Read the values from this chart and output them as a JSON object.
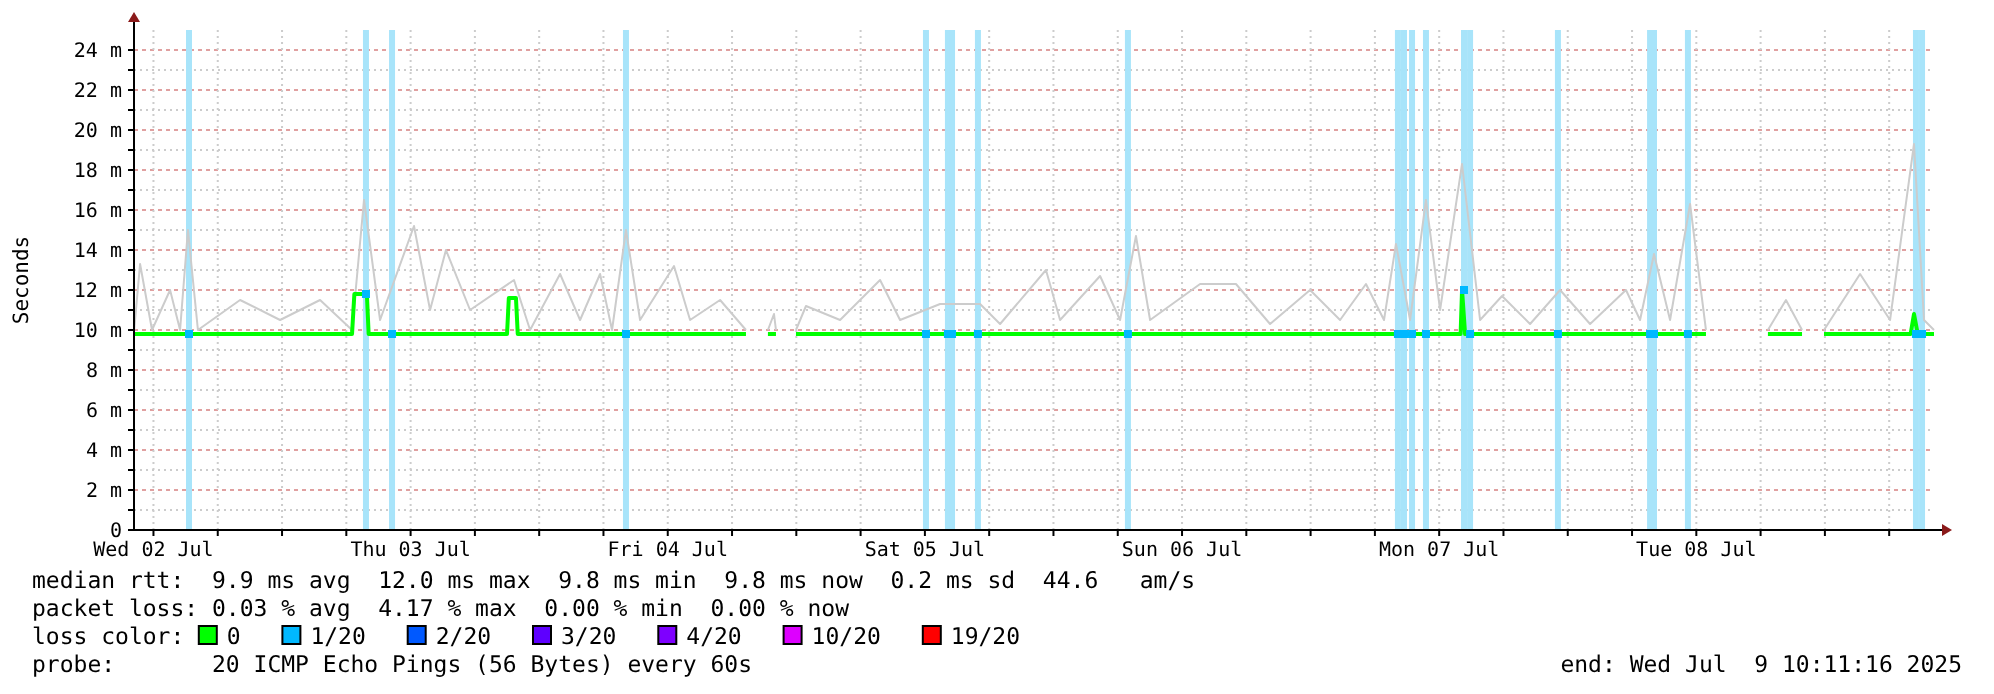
{
  "chart_data": {
    "type": "line",
    "ylabel": "Seconds",
    "ylim": [
      0,
      25
    ],
    "yticks": [
      0,
      {
        "value": 1,
        "label": null
      },
      {
        "value": 2,
        "label": "2 m"
      },
      {
        "value": 3,
        "label": null
      },
      {
        "value": 4,
        "label": "4 m"
      },
      {
        "value": 5,
        "label": null
      },
      {
        "value": 6,
        "label": "6 m"
      },
      {
        "value": 7,
        "label": null
      },
      {
        "value": 8,
        "label": "8 m"
      },
      {
        "value": 9,
        "label": null
      },
      {
        "value": 10,
        "label": "10 m"
      },
      {
        "value": 11,
        "label": null
      },
      {
        "value": 12,
        "label": "12 m"
      },
      {
        "value": 13,
        "label": null
      },
      {
        "value": 14,
        "label": "14 m"
      },
      {
        "value": 15,
        "label": null
      },
      {
        "value": 16,
        "label": "16 m"
      },
      {
        "value": 17,
        "label": null
      },
      {
        "value": 18,
        "label": "18 m"
      },
      {
        "value": 19,
        "label": null
      },
      {
        "value": 20,
        "label": "20 m"
      },
      {
        "value": 21,
        "label": null
      },
      {
        "value": 22,
        "label": "22 m"
      },
      {
        "value": 23,
        "label": null
      },
      {
        "value": 24,
        "label": "24 m"
      }
    ],
    "xlim": [
      "2025-07-02T10:11",
      "2025-07-09T10:11"
    ],
    "xticks": [
      {
        "value": "2025-07-02T12:00",
        "label": "Wed 02 Jul"
      },
      {
        "value": "2025-07-02T18:00",
        "label": null
      },
      {
        "value": "2025-07-03T00:00",
        "label": null
      },
      {
        "value": "2025-07-03T06:00",
        "label": null
      },
      {
        "value": "2025-07-03T12:00",
        "label": "Thu 03 Jul"
      },
      {
        "value": "2025-07-03T18:00",
        "label": null
      },
      {
        "value": "2025-07-04T00:00",
        "label": null
      },
      {
        "value": "2025-07-04T06:00",
        "label": null
      },
      {
        "value": "2025-07-04T12:00",
        "label": "Fri 04 Jul"
      },
      {
        "value": "2025-07-04T18:00",
        "label": null
      },
      {
        "value": "2025-07-05T00:00",
        "label": null
      },
      {
        "value": "2025-07-05T06:00",
        "label": null
      },
      {
        "value": "2025-07-05T12:00",
        "label": "Sat 05 Jul"
      },
      {
        "value": "2025-07-05T18:00",
        "label": null
      },
      {
        "value": "2025-07-06T00:00",
        "label": null
      },
      {
        "value": "2025-07-06T06:00",
        "label": null
      },
      {
        "value": "2025-07-06T12:00",
        "label": "Sun 06 Jul"
      },
      {
        "value": "2025-07-06T18:00",
        "label": null
      },
      {
        "value": "2025-07-07T00:00",
        "label": null
      },
      {
        "value": "2025-07-07T06:00",
        "label": null
      },
      {
        "value": "2025-07-07T12:00",
        "label": "Mon 07 Jul"
      },
      {
        "value": "2025-07-07T18:00",
        "label": null
      },
      {
        "value": "2025-07-08T00:00",
        "label": null
      },
      {
        "value": "2025-07-08T06:00",
        "label": null
      },
      {
        "value": "2025-07-08T12:00",
        "label": "Tue 08 Jul"
      },
      {
        "value": "2025-07-08T18:00",
        "label": null
      },
      {
        "value": "2025-07-09T00:00",
        "label": null
      },
      {
        "value": "2025-07-09T06:00",
        "label": null
      }
    ],
    "grid": true,
    "legend": "bottom",
    "ref_lines": [
      {
        "axis": "x",
        "value": "2025-07-02T15:19",
        "color": "#a8e4fa"
      },
      {
        "axis": "x",
        "value": "2025-07-03T07:50",
        "color": "#a8e4fa"
      },
      {
        "axis": "x",
        "value": "2025-07-03T10:16",
        "color": "#a8e4fa"
      },
      {
        "axis": "x",
        "value": "2025-07-04T08:06",
        "color": "#a8e4fa"
      },
      {
        "axis": "x",
        "value": "2025-07-05T12:06",
        "color": "#a8e4fa"
      },
      {
        "axis": "x",
        "value": "2025-07-05T14:09",
        "color": "#a8e4fa"
      },
      {
        "axis": "x",
        "value": "2025-07-05T14:32",
        "color": "#a8e4fa"
      },
      {
        "axis": "x",
        "value": "2025-07-05T16:57",
        "color": "#a8e4fa"
      },
      {
        "axis": "x",
        "value": "2025-07-06T06:57",
        "color": "#a8e4fa"
      },
      {
        "axis": "x",
        "value": "2025-07-07T08:09",
        "color": "#a8e4fa"
      },
      {
        "axis": "x",
        "value": "2025-07-07T08:43",
        "color": "#a8e4fa"
      },
      {
        "axis": "x",
        "value": "2025-07-07T09:28",
        "color": "#a8e4fa"
      },
      {
        "axis": "x",
        "value": "2025-07-07T10:46",
        "color": "#a8e4fa"
      },
      {
        "axis": "x",
        "value": "2025-07-07T14:19",
        "color": "#a8e4fa"
      },
      {
        "axis": "x",
        "value": "2025-07-07T14:53",
        "color": "#a8e4fa"
      },
      {
        "axis": "x",
        "value": "2025-07-07T23:05",
        "color": "#a8e4fa"
      },
      {
        "axis": "x",
        "value": "2025-07-08T07:41",
        "color": "#a8e4fa"
      },
      {
        "axis": "x",
        "value": "2025-07-08T08:03",
        "color": "#a8e4fa"
      },
      {
        "axis": "x",
        "value": "2025-07-08T11:13",
        "color": "#a8e4fa"
      },
      {
        "axis": "x",
        "value": "2025-07-09T08:30",
        "color": "#a8e4fa"
      },
      {
        "axis": "x",
        "value": "2025-07-09T09:04",
        "color": "#a8e4fa"
      }
    ],
    "series": [
      {
        "color": "#cccccc",
        "x": [
          "2025-07-02T10:11",
          "2025-07-02T10:45",
          "2025-07-02T11:52",
          "2025-07-02T13:33",
          "2025-07-02T14:29",
          "2025-07-02T15:13",
          "2025-07-02T16:09",
          "2025-07-02T20:05",
          "2025-07-02T23:49",
          "2025-07-03T03:33",
          "2025-07-03T06:32",
          "2025-07-03T07:39",
          "2025-07-03T09:09",
          "2025-07-03T12:19",
          "2025-07-03T13:49",
          "2025-07-03T15:18",
          "2025-07-03T17:33",
          "2025-07-03T21:39",
          "2025-07-03T23:09",
          "2025-07-04T01:57",
          "2025-07-04T03:49",
          "2025-07-04T05:41",
          "2025-07-04T06:48",
          "2025-07-04T08:06",
          "2025-07-04T09:25",
          "2025-07-04T12:35",
          "2025-07-04T14:05",
          "2025-07-04T16:53",
          "2025-07-04T19:18",
          "2025-07-04T20:14",
          "2025-07-04T21:21",
          "2025-07-04T21:55",
          "2025-07-04T22:06",
          "2025-07-04T23:02",
          "2025-07-04T23:58",
          "2025-07-05T00:54",
          "2025-07-05T04:05",
          "2025-07-05T07:49",
          "2025-07-05T09:41",
          "2025-07-05T13:25",
          "2025-07-05T17:09",
          "2025-07-05T19:01",
          "2025-07-05T23:18",
          "2025-07-06T00:37",
          "2025-07-06T04:21",
          "2025-07-06T06:13",
          "2025-07-06T07:42",
          "2025-07-06T09:01",
          "2025-07-06T13:41",
          "2025-07-06T17:02",
          "2025-07-06T20:13",
          "2025-07-06T23:57",
          "2025-07-07T02:45",
          "2025-07-07T05:10",
          "2025-07-07T06:51",
          "2025-07-07T07:58",
          "2025-07-07T09:17",
          "2025-07-07T10:46",
          "2025-07-07T12:05",
          "2025-07-07T14:08",
          "2025-07-07T15:49",
          "2025-07-07T17:52",
          "2025-07-07T20:29",
          "2025-07-07T23:17",
          "2025-07-08T02:05",
          "2025-07-08T05:26",
          "2025-07-08T06:45",
          "2025-07-08T08:03",
          "2025-07-08T09:33",
          "2025-07-08T11:25",
          "2025-07-08T12:54",
          "2025-07-08T14:13",
          "2025-07-08T18:41",
          "2025-07-08T20:22",
          "2025-07-08T21:52",
          "2025-07-08T22:14",
          "2025-07-08T23:55",
          "2025-07-09T03:17",
          "2025-07-09T06:05",
          "2025-07-09T08:19",
          "2025-07-09T09:15",
          "2025-07-09T10:11"
        ],
        "values": [
          9.9,
          13.3,
          10,
          12,
          10,
          15,
          10,
          11.5,
          10.5,
          11.5,
          10,
          16.5,
          10.5,
          15.2,
          11,
          14,
          11,
          12.5,
          10,
          12.8,
          10.5,
          12.8,
          10,
          15,
          10.5,
          13.2,
          10.5,
          11.5,
          10,
          null,
          10,
          10.8,
          10,
          null,
          10,
          11.2,
          10.5,
          12.5,
          10.5,
          11.3,
          11.3,
          10.3,
          13,
          10.5,
          12.7,
          10.5,
          14.7,
          10.5,
          12.3,
          12.3,
          10.3,
          12,
          10.5,
          12.3,
          10.5,
          14.3,
          10.5,
          16.5,
          11,
          18.3,
          10.5,
          11.7,
          10.3,
          12,
          10.3,
          12,
          10.5,
          13.8,
          10.5,
          16.3,
          10,
          null,
          10,
          11.5,
          10,
          null,
          10,
          12.8,
          10.5,
          19.3,
          10.5,
          10
        ]
      },
      {
        "name": "0",
        "color": "#00ff00",
        "x": [
          "2025-07-02T10:11",
          "2025-07-02T18:00",
          "2025-07-03T02:00",
          "2025-07-03T06:32",
          "2025-07-03T06:45",
          "2025-07-03T07:55",
          "2025-07-03T08:05",
          "2025-07-03T21:00",
          "2025-07-03T21:10",
          "2025-07-03T21:50",
          "2025-07-03T22:00",
          "2025-07-04T08:00",
          "2025-07-04T19:18",
          "2025-07-04T20:14",
          "2025-07-04T21:21",
          "2025-07-04T22:06",
          "2025-07-04T23:02",
          "2025-07-04T23:58",
          "2025-07-05T12:00",
          "2025-07-06T00:00",
          "2025-07-06T12:00",
          "2025-07-07T00:00",
          "2025-07-07T08:00",
          "2025-07-07T14:00",
          "2025-07-07T14:08",
          "2025-07-07T14:25",
          "2025-07-07T20:00",
          "2025-07-08T06:00",
          "2025-07-08T12:54",
          "2025-07-08T14:13",
          "2025-07-08T18:41",
          "2025-07-08T21:52",
          "2025-07-08T22:14",
          "2025-07-08T23:55",
          "2025-07-09T08:00",
          "2025-07-09T08:19",
          "2025-07-09T08:40",
          "2025-07-09T10:11"
        ],
        "values": [
          9.8,
          9.8,
          9.8,
          9.8,
          11.8,
          11.8,
          9.8,
          9.8,
          11.6,
          11.6,
          9.8,
          9.8,
          9.8,
          null,
          9.8,
          9.8,
          null,
          9.8,
          9.8,
          9.8,
          9.8,
          9.8,
          9.8,
          9.8,
          12.0,
          9.8,
          9.8,
          9.8,
          9.8,
          null,
          9.8,
          9.8,
          null,
          9.8,
          9.8,
          10.8,
          9.8,
          9.8
        ]
      },
      {
        "type": "scatter",
        "name": "1/20",
        "color": "#00b8ff",
        "marker": "square",
        "x": [
          "2025-07-02T15:19",
          "2025-07-03T07:50",
          "2025-07-03T10:16",
          "2025-07-04T08:06",
          "2025-07-05T12:06",
          "2025-07-05T14:09",
          "2025-07-05T14:32",
          "2025-07-05T16:57",
          "2025-07-06T06:57",
          "2025-07-07T08:09",
          "2025-07-07T08:43",
          "2025-07-07T09:28",
          "2025-07-07T10:46",
          "2025-07-07T14:19",
          "2025-07-07T14:53",
          "2025-07-07T23:05",
          "2025-07-08T07:41",
          "2025-07-08T08:03",
          "2025-07-08T11:13",
          "2025-07-09T08:30",
          "2025-07-09T09:04"
        ],
        "values": [
          9.8,
          11.8,
          9.8,
          9.8,
          9.8,
          9.8,
          9.8,
          9.8,
          9.8,
          9.8,
          9.8,
          9.8,
          9.8,
          12.0,
          9.8,
          9.8,
          9.8,
          9.8,
          9.8,
          9.8,
          9.8
        ]
      },
      {
        "type": "scatter",
        "name": "2/20",
        "color": "#0059ff"
      },
      {
        "type": "scatter",
        "name": "3/20",
        "color": "#5e00ff"
      },
      {
        "type": "scatter",
        "name": "4/20",
        "color": "#7e00ff"
      },
      {
        "type": "scatter",
        "name": "10/20",
        "color": "#dd00ff"
      },
      {
        "type": "scatter",
        "name": "19/20",
        "color": "#ff0000"
      }
    ],
    "annotations": [
      "median rtt:  9.9 ms avg  12.0 ms max  9.8 ms min  9.8 ms now  0.2 ms sd  44.6   am/s",
      "packet loss: 0.03 % avg  4.17 % max  0.00 % min  0.00 % now",
      "loss color:",
      "probe:       20 ICMP Echo Pings (56 Bytes) every 60s",
      "end: Wed Jul  9 10:11:16 2025"
    ]
  }
}
